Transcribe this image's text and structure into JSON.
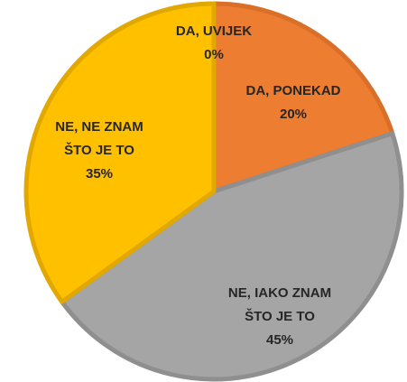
{
  "chart_data": {
    "type": "pie",
    "categories": [
      "DA, UVIJEK",
      "DA, PONEKAD",
      "NE, IAKO ZNAM ŠTO JE TO",
      "NE, NE ZNAM ŠTO JE TO"
    ],
    "values": [
      0,
      20,
      45,
      35
    ],
    "value_labels": [
      "0%",
      "20%",
      "45%",
      "35%"
    ],
    "colors": [
      "#ffc000",
      "#ed7d31",
      "#a5a5a5",
      "#ffc000"
    ],
    "edge_colors": [
      "#e0a800",
      "#d96f28",
      "#8f8f8f",
      "#e0a800"
    ]
  }
}
